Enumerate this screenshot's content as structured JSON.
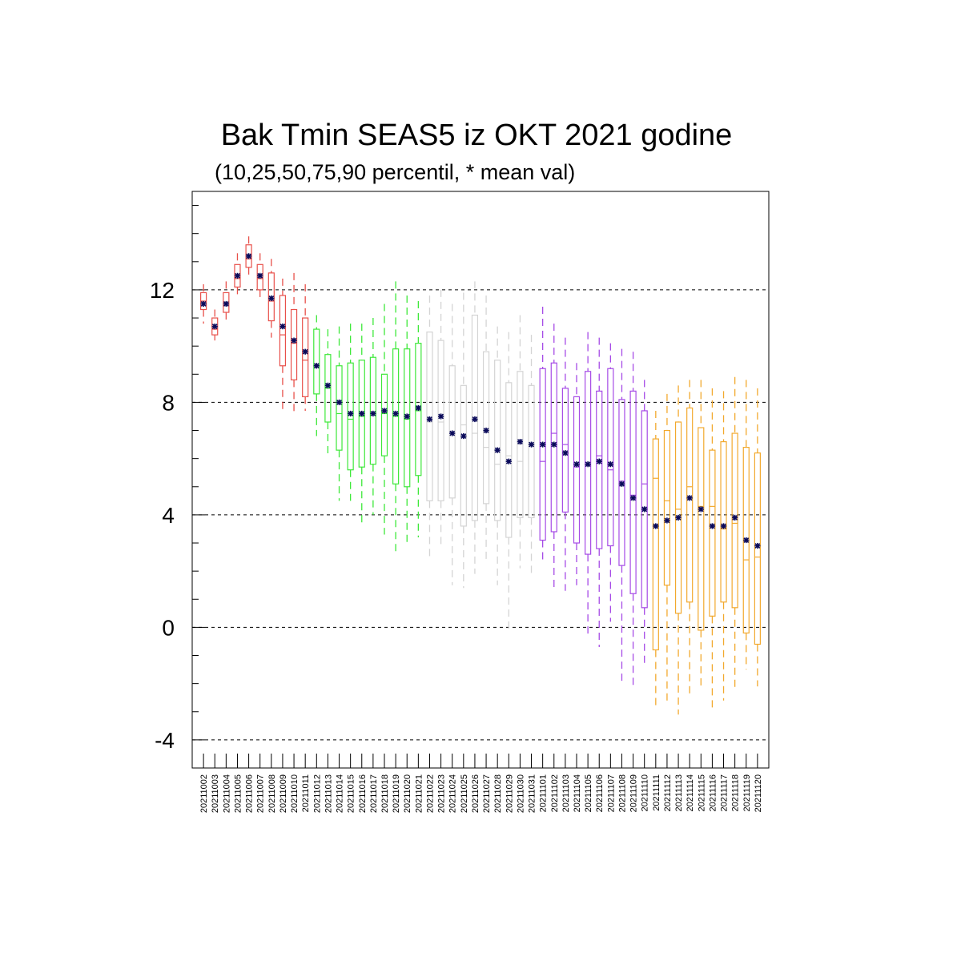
{
  "chart_data": {
    "type": "boxplot",
    "title": "Bak Tmin SEAS5 iz OKT 2021 godine",
    "subtitle": "(10,25,50,75,90 percentil, * mean val)",
    "xlabel": "",
    "ylabel": "",
    "ylim": [
      -5,
      15.5
    ],
    "yticks": [
      -4,
      0,
      4,
      8,
      12
    ],
    "grid": "horizontal dashed at major ticks",
    "legend": "none",
    "colors": {
      "red": "#e8504a",
      "green": "#3ee83a",
      "gray": "#d4d4d4",
      "purple": "#a64be6",
      "orange": "#f2a92e",
      "mean": "#0a0a5a"
    },
    "categories": [
      "20211002",
      "20211003",
      "20211004",
      "20211005",
      "20211006",
      "20211007",
      "20211008",
      "20211009",
      "20211010",
      "20211011",
      "20211012",
      "20211013",
      "20211014",
      "20211015",
      "20211016",
      "20211017",
      "20211018",
      "20211019",
      "20211020",
      "20211021",
      "20211022",
      "20211023",
      "20211024",
      "20211025",
      "20211026",
      "20211027",
      "20211028",
      "20211029",
      "20211030",
      "20211031",
      "20211101",
      "20211102",
      "20211103",
      "20211104",
      "20211105",
      "20211106",
      "20211107",
      "20211108",
      "20211109",
      "20211110",
      "20211111",
      "20211112",
      "20211113",
      "20211114",
      "20211115",
      "20211116",
      "20211117",
      "20211118",
      "20211119",
      "20211120"
    ],
    "series": [
      {
        "color": "red",
        "start": 0,
        "p10": [
          10.8,
          10.2,
          10.8,
          11.8,
          12.5,
          11.6,
          10.3,
          7.6,
          7.6,
          7.7
        ],
        "p25": [
          11.3,
          10.4,
          11.2,
          12.1,
          12.8,
          12.0,
          10.9,
          9.3,
          8.8,
          8.2
        ],
        "p50": [
          11.6,
          10.6,
          11.5,
          12.4,
          13.1,
          12.4,
          11.6,
          10.4,
          10.1,
          9.5
        ],
        "p75": [
          11.9,
          11.0,
          11.9,
          12.9,
          13.6,
          12.9,
          12.6,
          11.8,
          11.3,
          11.0
        ],
        "p90": [
          12.2,
          11.3,
          12.3,
          13.3,
          13.9,
          13.3,
          13.1,
          12.4,
          12.6,
          12.2
        ],
        "mean": [
          11.5,
          10.7,
          11.5,
          12.5,
          13.2,
          12.5,
          11.7,
          10.7,
          10.2,
          9.8
        ]
      },
      {
        "color": "green",
        "start": 10,
        "p10": [
          6.8,
          6.1,
          4.5,
          4.5,
          3.6,
          4.0,
          3.3,
          2.6,
          3.0,
          3.2
        ],
        "p25": [
          8.3,
          7.3,
          6.3,
          5.6,
          5.7,
          5.8,
          6.1,
          5.1,
          5.0,
          5.4
        ],
        "p50": [
          9.3,
          8.5,
          7.6,
          7.4,
          7.5,
          7.6,
          7.6,
          7.5,
          7.4,
          7.7
        ],
        "p75": [
          10.6,
          9.7,
          9.3,
          9.4,
          9.5,
          9.6,
          9.0,
          9.9,
          9.9,
          10.1
        ],
        "p90": [
          11.1,
          10.6,
          10.7,
          10.8,
          10.8,
          11.0,
          11.5,
          12.3,
          11.8,
          11.6
        ],
        "mean": [
          9.3,
          8.6,
          8.0,
          7.6,
          7.6,
          7.6,
          7.7,
          7.6,
          7.5,
          7.8
        ]
      },
      {
        "color": "gray",
        "start": 20,
        "p10": [
          2.5,
          2.9,
          1.5,
          1.4,
          1.9,
          2.3,
          1.5,
          -0.1,
          2.1,
          1.8
        ],
        "p25": [
          4.5,
          4.5,
          4.6,
          3.6,
          3.8,
          4.4,
          3.8,
          3.2,
          3.9,
          3.9
        ],
        "p50": [
          7.3,
          7.3,
          6.9,
          7.2,
          6.9,
          6.4,
          5.8,
          6.1,
          5.9,
          6.5
        ],
        "p75": [
          10.5,
          10.2,
          9.3,
          8.6,
          11.1,
          9.8,
          9.5,
          8.7,
          9.1,
          8.6
        ],
        "p90": [
          11.8,
          12.0,
          11.5,
          11.9,
          12.3,
          11.8,
          10.7,
          10.5,
          11.1,
          10.4
        ],
        "mean": [
          7.4,
          7.5,
          6.9,
          6.8,
          7.4,
          7.0,
          6.3,
          5.9,
          6.6,
          6.5
        ]
      },
      {
        "color": "purple",
        "start": 30,
        "p10": [
          2.3,
          1.3,
          1.3,
          1.5,
          -0.3,
          -0.7,
          0.2,
          -2.0,
          -2.1,
          -1.4
        ],
        "p25": [
          3.1,
          3.4,
          4.1,
          3.0,
          2.6,
          2.8,
          2.9,
          2.2,
          1.2,
          0.7
        ],
        "p50": [
          5.9,
          6.9,
          6.5,
          5.7,
          5.8,
          6.1,
          5.6,
          5.2,
          4.7,
          5.1
        ],
        "p75": [
          9.2,
          9.4,
          8.5,
          8.2,
          9.1,
          8.4,
          9.2,
          8.1,
          8.4,
          7.7
        ],
        "p90": [
          11.4,
          10.8,
          10.3,
          9.4,
          10.5,
          10.3,
          10.1,
          9.9,
          9.8,
          8.8
        ],
        "mean": [
          6.5,
          6.5,
          6.2,
          5.8,
          5.8,
          5.9,
          5.8,
          5.1,
          4.6,
          4.2
        ]
      },
      {
        "color": "orange",
        "start": 40,
        "p10": [
          -2.8,
          -2.7,
          -3.1,
          -2.4,
          -2.2,
          -2.9,
          -2.6,
          -2.2,
          -1.5,
          -2.1
        ],
        "p25": [
          -0.8,
          1.5,
          0.5,
          0.9,
          -0.1,
          0.4,
          0.9,
          0.7,
          -0.2,
          -0.6
        ],
        "p50": [
          5.3,
          4.5,
          4.2,
          5.0,
          4.3,
          4.3,
          3.5,
          3.7,
          2.4,
          2.5
        ],
        "p75": [
          6.7,
          7.0,
          7.3,
          7.8,
          7.1,
          6.3,
          6.6,
          6.9,
          6.4,
          6.2
        ],
        "p90": [
          7.7,
          8.3,
          8.6,
          8.8,
          8.8,
          8.5,
          8.4,
          8.9,
          8.8,
          8.5
        ],
        "mean": [
          3.6,
          3.8,
          3.9,
          4.6,
          4.2,
          3.6,
          3.6,
          3.9,
          3.1,
          2.9
        ]
      }
    ]
  }
}
